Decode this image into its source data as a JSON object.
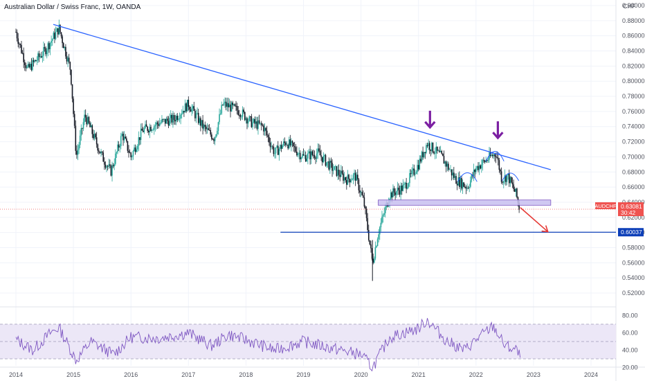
{
  "chart_title": "Australian Dollar / Swiss Franc, 1W, OANDA",
  "currency_label": "CHF",
  "colors": {
    "up": "#26a69a",
    "down": "#131722",
    "trendline": "#2962ff",
    "support_line": "#0d3fb8",
    "zone_fill": "#c8bff0",
    "zone_stroke": "#7e57c2",
    "arrow_purple": "#7b1fa2",
    "arrow_red": "#e53935",
    "pattern_arcs": "#2962ff",
    "rsi_line": "#7e57c2",
    "rsi_band": "#ece7f7",
    "price_tag": "#ef5350",
    "support_tag": "#0d3fb8"
  },
  "price_tags": {
    "current": {
      "symbol": "AUDCHF",
      "price": "0.63081",
      "countdown": "30:42"
    },
    "support": "0.60037"
  },
  "chart_data": [
    {
      "type": "candlestick",
      "title": "Australian Dollar / Swiss Franc, 1W, OANDA",
      "y_axis_label": "CHF",
      "ylim": [
        0.52,
        0.9
      ],
      "y_ticks": [
        "0.90000",
        "0.88000",
        "0.86000",
        "0.84000",
        "0.82000",
        "0.80000",
        "0.78000",
        "0.76000",
        "0.74000",
        "0.72000",
        "0.70000",
        "0.68000",
        "0.66000",
        "0.64000",
        "0.62000",
        "0.60000",
        "0.58000",
        "0.56000",
        "0.54000",
        "0.52000"
      ],
      "x_ticks": [
        "2014",
        "2015",
        "2016",
        "2017",
        "2018",
        "2019",
        "2020",
        "2021",
        "2022",
        "2023",
        "2024"
      ],
      "grid": true,
      "approx_price_path": [
        [
          2014.0,
          0.865
        ],
        [
          2014.2,
          0.815
        ],
        [
          2014.5,
          0.84
        ],
        [
          2014.75,
          0.87
        ],
        [
          2014.95,
          0.815
        ],
        [
          2015.05,
          0.7
        ],
        [
          2015.2,
          0.755
        ],
        [
          2015.5,
          0.7
        ],
        [
          2015.65,
          0.68
        ],
        [
          2015.85,
          0.73
        ],
        [
          2016.0,
          0.7
        ],
        [
          2016.2,
          0.735
        ],
        [
          2016.5,
          0.745
        ],
        [
          2016.75,
          0.75
        ],
        [
          2017.0,
          0.77
        ],
        [
          2017.25,
          0.74
        ],
        [
          2017.45,
          0.725
        ],
        [
          2017.6,
          0.77
        ],
        [
          2017.9,
          0.76
        ],
        [
          2018.1,
          0.745
        ],
        [
          2018.3,
          0.74
        ],
        [
          2018.5,
          0.705
        ],
        [
          2018.7,
          0.72
        ],
        [
          2019.0,
          0.7
        ],
        [
          2019.25,
          0.705
        ],
        [
          2019.5,
          0.685
        ],
        [
          2019.75,
          0.67
        ],
        [
          2019.9,
          0.675
        ],
        [
          2020.05,
          0.64
        ],
        [
          2020.2,
          0.56
        ],
        [
          2020.3,
          0.6
        ],
        [
          2020.5,
          0.65
        ],
        [
          2020.75,
          0.66
        ],
        [
          2021.0,
          0.69
        ],
        [
          2021.15,
          0.718
        ],
        [
          2021.4,
          0.7
        ],
        [
          2021.65,
          0.67
        ],
        [
          2021.85,
          0.66
        ],
        [
          2022.0,
          0.685
        ],
        [
          2022.25,
          0.7
        ],
        [
          2022.35,
          0.705
        ],
        [
          2022.45,
          0.67
        ],
        [
          2022.55,
          0.675
        ],
        [
          2022.7,
          0.65
        ],
        [
          2022.75,
          0.633
        ]
      ],
      "low_extreme": {
        "x": 2020.2,
        "y": 0.536
      },
      "annotations": {
        "trendline": {
          "from": [
            2014.65,
            0.875
          ],
          "to": [
            2023.3,
            0.683
          ]
        },
        "support_zone": {
          "x": [
            2020.3,
            2023.3
          ],
          "y": [
            0.636,
            0.643
          ]
        },
        "support_line": {
          "x": [
            2018.6,
            2024.5
          ],
          "y": 0.60037
        },
        "peak_markers": [
          {
            "x": 2021.2,
            "y": 0.728
          },
          {
            "x": 2022.38,
            "y": 0.714
          }
        ],
        "breakdown_arrow": {
          "from": [
            2022.77,
            0.633
          ],
          "to": [
            2023.25,
            0.601
          ]
        },
        "current_price": 0.63081
      }
    },
    {
      "type": "line",
      "name": "RSI",
      "ylim": [
        14,
        86
      ],
      "y_ticks": [
        "80.00",
        "60.00",
        "40.00",
        "20.00"
      ],
      "bands": {
        "upper": 70,
        "middle": 50,
        "lower": 30
      },
      "approx_values": [
        [
          2014.0,
          52
        ],
        [
          2014.3,
          40
        ],
        [
          2014.6,
          60
        ],
        [
          2014.75,
          66
        ],
        [
          2015.05,
          28
        ],
        [
          2015.3,
          50
        ],
        [
          2015.7,
          35
        ],
        [
          2016.0,
          55
        ],
        [
          2016.5,
          54
        ],
        [
          2017.0,
          60
        ],
        [
          2017.4,
          45
        ],
        [
          2017.7,
          58
        ],
        [
          2018.0,
          52
        ],
        [
          2018.5,
          40
        ],
        [
          2019.0,
          50
        ],
        [
          2019.5,
          42
        ],
        [
          2020.0,
          35
        ],
        [
          2020.2,
          20
        ],
        [
          2020.5,
          55
        ],
        [
          2021.0,
          65
        ],
        [
          2021.15,
          75
        ],
        [
          2021.5,
          50
        ],
        [
          2021.8,
          40
        ],
        [
          2022.0,
          52
        ],
        [
          2022.3,
          68
        ],
        [
          2022.5,
          45
        ],
        [
          2022.7,
          40
        ],
        [
          2022.77,
          32
        ]
      ]
    }
  ]
}
